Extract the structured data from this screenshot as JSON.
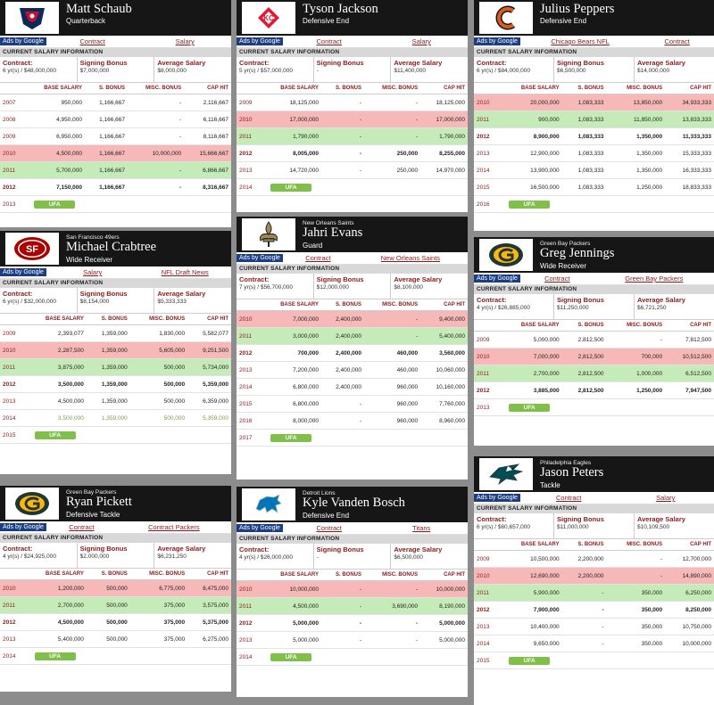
{
  "common": {
    "ads_label": "Ads by Google",
    "section_title": "CURRENT SALARY INFORMATION",
    "contract_label": "Contract:",
    "signing_label": "Signing Bonus",
    "average_label": "Average Salary",
    "ufa_label": "UFA",
    "columns": [
      "BASE SALARY",
      "S. BONUS",
      "MISC. BONUS",
      "CAP HIT"
    ]
  },
  "colors": {
    "header_bg": "#161616",
    "row_red": "#f7b8b8",
    "row_green": "#c5ecb8",
    "ufa": "#7fbf4a",
    "accent": "#8b1a1a",
    "ads": "#1a3d84"
  },
  "cards": [
    {
      "team": "",
      "name": "Matt Schaub",
      "position": "Quarterback",
      "logo": "texans-logo",
      "links": [
        "Contract",
        "Salary"
      ],
      "contract": "6 yr(s) / $48,000,000",
      "signing": "$7,000,000",
      "average": "$8,000,000",
      "rows": [
        {
          "year": "2007",
          "base": "950,000",
          "sb": "1,166,667",
          "misc": "-",
          "cap": "2,116,667",
          "style": ""
        },
        {
          "year": "2008",
          "base": "4,950,000",
          "sb": "1,166,667",
          "misc": "-",
          "cap": "6,116,667",
          "style": ""
        },
        {
          "year": "2009",
          "base": "6,950,000",
          "sb": "1,166,667",
          "misc": "-",
          "cap": "8,116,667",
          "style": ""
        },
        {
          "year": "2010",
          "base": "4,500,000",
          "sb": "1,166,667",
          "misc": "10,000,000",
          "cap": "15,666,667",
          "style": "red"
        },
        {
          "year": "2011",
          "base": "5,700,000",
          "sb": "1,166,667",
          "misc": "-",
          "cap": "6,866,667",
          "style": "green"
        },
        {
          "year": "2012",
          "base": "7,150,000",
          "sb": "1,166,667",
          "misc": "-",
          "cap": "8,316,667",
          "style": "bold"
        }
      ],
      "ufa_year": "2013"
    },
    {
      "team": "",
      "name": "Tyson Jackson",
      "position": "Defensive End",
      "logo": "chiefs-logo",
      "links": [
        "Contract",
        "Salary"
      ],
      "contract": "5 yr(s) / $57,000,000",
      "signing": "-",
      "average": "$11,400,000",
      "rows": [
        {
          "year": "2009",
          "base": "18,125,000",
          "sb": "-",
          "misc": "-",
          "cap": "18,125,000",
          "style": ""
        },
        {
          "year": "2010",
          "base": "17,000,000",
          "sb": "-",
          "misc": "-",
          "cap": "17,000,000",
          "style": "red"
        },
        {
          "year": "2011",
          "base": "1,790,000",
          "sb": "-",
          "misc": "-",
          "cap": "1,790,000",
          "style": "green"
        },
        {
          "year": "2012",
          "base": "8,005,000",
          "sb": "-",
          "misc": "250,000",
          "cap": "8,255,000",
          "style": "bold"
        },
        {
          "year": "2013",
          "base": "14,720,000",
          "sb": "-",
          "misc": "250,000",
          "cap": "14,970,000",
          "style": ""
        }
      ],
      "ufa_year": "2014"
    },
    {
      "team": "",
      "name": "Julius Peppers",
      "position": "Defensive End",
      "logo": "bears-logo",
      "links": [
        "Chicago Bears NFL",
        "Contract"
      ],
      "contract": "6 yr(s) / $84,000,000",
      "signing": "$6,500,000",
      "average": "$14,000,000",
      "rows": [
        {
          "year": "2010",
          "base": "20,000,000",
          "sb": "1,083,333",
          "misc": "13,850,000",
          "cap": "34,933,333",
          "style": "red"
        },
        {
          "year": "2011",
          "base": "900,000",
          "sb": "1,083,333",
          "misc": "11,850,000",
          "cap": "13,833,333",
          "style": "green"
        },
        {
          "year": "2012",
          "base": "8,900,000",
          "sb": "1,083,333",
          "misc": "1,350,000",
          "cap": "11,333,333",
          "style": "bold"
        },
        {
          "year": "2013",
          "base": "12,900,000",
          "sb": "1,083,333",
          "misc": "1,350,000",
          "cap": "15,333,333",
          "style": ""
        },
        {
          "year": "2014",
          "base": "13,900,000",
          "sb": "1,083,333",
          "misc": "1,350,000",
          "cap": "16,333,333",
          "style": ""
        },
        {
          "year": "2015",
          "base": "16,500,000",
          "sb": "1,083,333",
          "misc": "1,250,000",
          "cap": "18,833,333",
          "style": ""
        }
      ],
      "ufa_year": "2016"
    },
    {
      "team": "San Francisco 49ers",
      "name": "Michael Crabtree",
      "position": "Wide Receiver",
      "logo": "49ers-logo",
      "links": [
        "Salary",
        "NFL Draft News"
      ],
      "contract": "6 yr(s) / $32,000,000",
      "signing": "$8,154,000",
      "average": "$5,333,333",
      "rows": [
        {
          "year": "2009",
          "base": "2,393,077",
          "sb": "1,359,000",
          "misc": "1,830,000",
          "cap": "5,582,077",
          "style": ""
        },
        {
          "year": "2010",
          "base": "2,287,500",
          "sb": "1,359,000",
          "misc": "5,605,000",
          "cap": "9,251,500",
          "style": "red"
        },
        {
          "year": "2011",
          "base": "3,875,000",
          "sb": "1,359,000",
          "misc": "500,000",
          "cap": "5,734,000",
          "style": "green"
        },
        {
          "year": "2012",
          "base": "3,500,000",
          "sb": "1,359,000",
          "misc": "500,000",
          "cap": "5,359,000",
          "style": "bold"
        },
        {
          "year": "2013",
          "base": "4,500,000",
          "sb": "1,359,000",
          "misc": "500,000",
          "cap": "6,359,000",
          "style": ""
        },
        {
          "year": "2014",
          "base": "3,500,000",
          "sb": "1,359,000",
          "misc": "500,000",
          "cap": "5,359,000",
          "style": "fade"
        }
      ],
      "ufa_year": "2015"
    },
    {
      "team": "New Orleans Saints",
      "name": "Jahri Evans",
      "position": "Guard",
      "logo": "saints-logo",
      "links": [
        "Contract",
        "New Orleans Saints"
      ],
      "contract": "7 yr(s) / $56,700,000",
      "signing": "$12,000,000",
      "average": "$8,100,000",
      "rows": [
        {
          "year": "2010",
          "base": "7,000,000",
          "sb": "2,400,000",
          "misc": "-",
          "cap": "9,400,000",
          "style": "red"
        },
        {
          "year": "2011",
          "base": "3,000,000",
          "sb": "2,400,000",
          "misc": "-",
          "cap": "5,400,000",
          "style": "green"
        },
        {
          "year": "2012",
          "base": "700,000",
          "sb": "2,400,000",
          "misc": "460,000",
          "cap": "3,560,000",
          "style": "bold"
        },
        {
          "year": "2013",
          "base": "7,200,000",
          "sb": "2,400,000",
          "misc": "460,000",
          "cap": "10,060,000",
          "style": ""
        },
        {
          "year": "2014",
          "base": "6,800,000",
          "sb": "2,400,000",
          "misc": "960,000",
          "cap": "10,160,000",
          "style": ""
        },
        {
          "year": "2015",
          "base": "6,800,000",
          "sb": "-",
          "misc": "960,000",
          "cap": "7,760,000",
          "style": ""
        },
        {
          "year": "2016",
          "base": "8,000,000",
          "sb": "-",
          "misc": "960,000",
          "cap": "8,960,000",
          "style": ""
        }
      ],
      "ufa_year": "2017"
    },
    {
      "team": "Green Bay Packers",
      "name": "Greg Jennings",
      "position": "Wide Receiver",
      "logo": "packers-logo",
      "links": [
        "Contract",
        "Green Bay Packers"
      ],
      "contract": "4 yr(s) / $26,885,000",
      "signing": "$11,250,000",
      "average": "$6,721,250",
      "rows": [
        {
          "year": "2009",
          "base": "5,000,000",
          "sb": "2,812,500",
          "misc": "-",
          "cap": "7,812,500",
          "style": ""
        },
        {
          "year": "2010",
          "base": "7,000,000",
          "sb": "2,812,500",
          "misc": "700,000",
          "cap": "10,512,500",
          "style": "red"
        },
        {
          "year": "2011",
          "base": "2,700,000",
          "sb": "2,812,500",
          "misc": "1,000,000",
          "cap": "6,512,500",
          "style": "green"
        },
        {
          "year": "2012",
          "base": "3,885,000",
          "sb": "2,812,500",
          "misc": "1,250,000",
          "cap": "7,947,500",
          "style": "bold"
        }
      ],
      "ufa_year": "2013"
    },
    {
      "team": "Green Bay Packers",
      "name": "Ryan Pickett",
      "position": "Defensive Tackle",
      "logo": "packers-logo",
      "links": [
        "Contract",
        "Contract Packers"
      ],
      "contract": "4 yr(s) / $24,925,000",
      "signing": "$2,000,000",
      "average": "$6,231,250",
      "rows": [
        {
          "year": "2010",
          "base": "1,200,000",
          "sb": "500,000",
          "misc": "6,775,000",
          "cap": "8,475,000",
          "style": "red"
        },
        {
          "year": "2011",
          "base": "2,700,000",
          "sb": "500,000",
          "misc": "375,000",
          "cap": "3,575,000",
          "style": "green"
        },
        {
          "year": "2012",
          "base": "4,500,000",
          "sb": "500,000",
          "misc": "375,000",
          "cap": "5,375,000",
          "style": "bold"
        },
        {
          "year": "2013",
          "base": "5,400,000",
          "sb": "500,000",
          "misc": "375,000",
          "cap": "6,275,000",
          "style": ""
        }
      ],
      "ufa_year": "2014"
    },
    {
      "team": "Detroit Lions",
      "name": "Kyle Vanden Bosch",
      "position": "Defensive End",
      "logo": "lions-logo",
      "links": [
        "Contract",
        "Titans"
      ],
      "contract": "4 yr(s) / $26,000,000",
      "signing": "-",
      "average": "$6,500,000",
      "rows": [
        {
          "year": "2010",
          "base": "10,000,000",
          "sb": "-",
          "misc": "-",
          "cap": "10,000,000",
          "style": "red"
        },
        {
          "year": "2011",
          "base": "4,500,000",
          "sb": "-",
          "misc": "3,690,000",
          "cap": "8,190,000",
          "style": "green"
        },
        {
          "year": "2012",
          "base": "5,000,000",
          "sb": "-",
          "misc": "-",
          "cap": "5,000,000",
          "style": "bold"
        },
        {
          "year": "2013",
          "base": "5,000,000",
          "sb": "-",
          "misc": "-",
          "cap": "5,000,000",
          "style": ""
        }
      ],
      "ufa_year": "2014"
    },
    {
      "team": "Philadelphia Eagles",
      "name": "Jason Peters",
      "position": "Tackle",
      "logo": "eagles-logo",
      "links": [
        "Contract",
        "Salary"
      ],
      "contract": "6 yr(s) / $60,657,000",
      "signing": "$11,000,000",
      "average": "$10,109,500",
      "rows": [
        {
          "year": "2009",
          "base": "10,500,000",
          "sb": "2,200,000",
          "misc": "-",
          "cap": "12,700,000",
          "style": ""
        },
        {
          "year": "2010",
          "base": "12,690,000",
          "sb": "2,200,000",
          "misc": "-",
          "cap": "14,890,000",
          "style": "red"
        },
        {
          "year": "2011",
          "base": "5,900,000",
          "sb": "-",
          "misc": "350,000",
          "cap": "6,250,000",
          "style": "green"
        },
        {
          "year": "2012",
          "base": "7,900,000",
          "sb": "-",
          "misc": "350,000",
          "cap": "8,250,000",
          "style": "bold"
        },
        {
          "year": "2013",
          "base": "10,400,000",
          "sb": "-",
          "misc": "350,000",
          "cap": "10,750,000",
          "style": ""
        },
        {
          "year": "2014",
          "base": "9,650,000",
          "sb": "-",
          "misc": "350,000",
          "cap": "10,000,000",
          "style": ""
        }
      ],
      "ufa_year": "2015"
    }
  ]
}
